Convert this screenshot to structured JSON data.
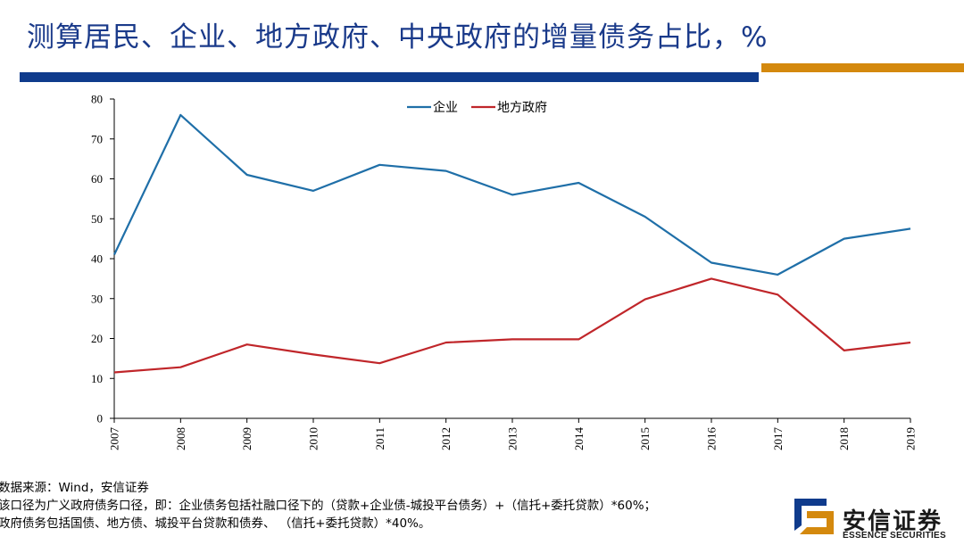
{
  "title": "测算居民、企业、地方政府、中央政府的增量债务占比，%",
  "colors": {
    "title": "#1a3a8a",
    "bar_blue": "#0f3b8c",
    "bar_orange": "#d4890e",
    "series_enterprise": "#1f6fa8",
    "series_local_gov": "#c0262a"
  },
  "chart_data": {
    "type": "line",
    "x": [
      "2007",
      "2008",
      "2009",
      "2010",
      "2011",
      "2012",
      "2013",
      "2014",
      "2015",
      "2016",
      "2017",
      "2018",
      "2019"
    ],
    "ylim": [
      0,
      80
    ],
    "yticks": [
      0,
      10,
      20,
      30,
      40,
      50,
      60,
      70,
      80
    ],
    "grid": false,
    "legend_position": "top-center",
    "series": [
      {
        "name": "企业",
        "color": "#1f6fa8",
        "values": [
          41,
          76,
          61,
          57,
          63.5,
          62,
          56,
          59,
          50.5,
          39,
          36,
          45,
          47.5
        ]
      },
      {
        "name": "地方政府",
        "color": "#c0262a",
        "values": [
          11.5,
          12.8,
          18.5,
          16,
          13.8,
          19,
          19.8,
          19.8,
          29.8,
          35,
          31,
          17,
          19
        ]
      }
    ]
  },
  "notes": [
    "数据来源：Wind，安信证券",
    "该口径为广义政府债务口径，即：企业债务包括社融口径下的（贷款+企业债-城投平台债务）+（信托+委托贷款）*60%；",
    "政府债务包括国债、地方债、城投平台贷款和债券、 （信托+委托贷款）*40%。"
  ],
  "logo": {
    "cn": "安信证券",
    "en": "ESSENCE SECURITIES"
  }
}
